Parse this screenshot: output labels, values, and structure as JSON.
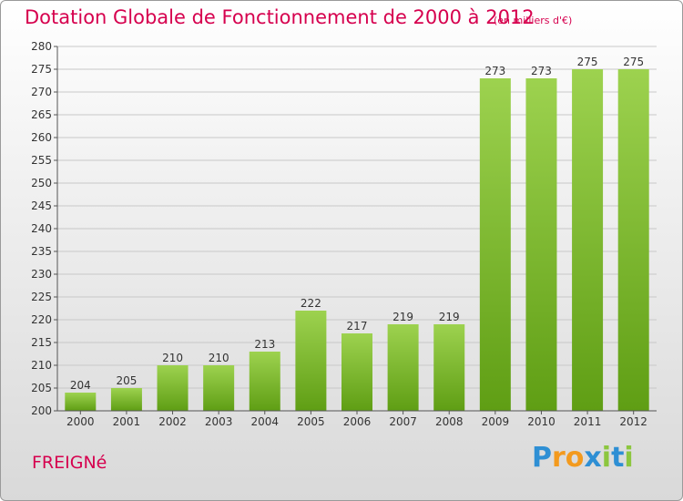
{
  "title": "Dotation Globale de Fonctionnement de 2000 à 2012",
  "unit_note": "(en milliers d'€)",
  "commune": "FREIGNé",
  "logo": {
    "text": "Proxiti",
    "letters": [
      {
        "ch": "P",
        "color": "#2e8fd4"
      },
      {
        "ch": "r",
        "color": "#f39a1e"
      },
      {
        "ch": "o",
        "color": "#f39a1e"
      },
      {
        "ch": "x",
        "color": "#2e8fd4"
      },
      {
        "ch": "i",
        "color": "#8cc63f"
      },
      {
        "ch": "t",
        "color": "#2e8fd4"
      },
      {
        "ch": "i",
        "color": "#8cc63f"
      }
    ]
  },
  "colors": {
    "accent": "#d6004e",
    "bar_top": "#9dd24f",
    "bar_bottom": "#5f9e14",
    "grid": "#c8c8c8",
    "axis": "#555555"
  },
  "chart_data": {
    "type": "bar",
    "title": "Dotation Globale de Fonctionnement de 2000 à 2012",
    "subtitle": "(en milliers d'€)",
    "categories": [
      "2000",
      "2001",
      "2002",
      "2003",
      "2004",
      "2005",
      "2006",
      "2007",
      "2008",
      "2009",
      "2010",
      "2011",
      "2012"
    ],
    "values": [
      204,
      205,
      210,
      210,
      213,
      222,
      217,
      219,
      219,
      273,
      273,
      275,
      275
    ],
    "ylim": [
      200,
      280
    ],
    "ytick_step": 5,
    "yticks": [
      "200",
      "205",
      "210",
      "215",
      "220",
      "225",
      "230",
      "235",
      "240",
      "245",
      "250",
      "255",
      "260",
      "265",
      "270",
      "275",
      "280"
    ],
    "data_labels": true,
    "grid": true,
    "xlabel": "",
    "ylabel": ""
  }
}
